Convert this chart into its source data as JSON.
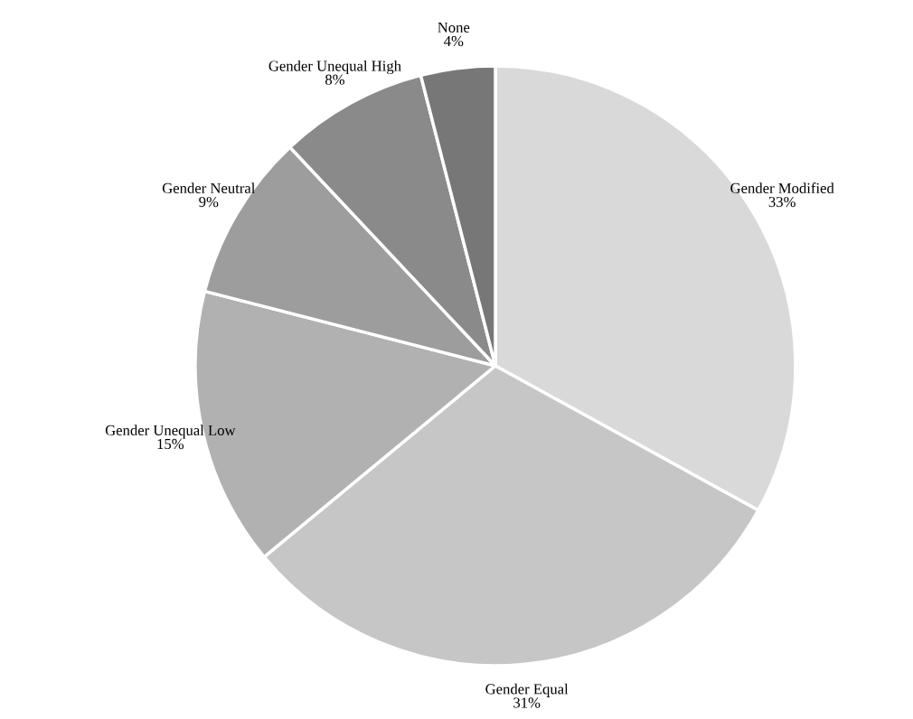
{
  "chart_data": {
    "type": "pie",
    "categories": [
      "Gender Modified",
      "Gender Equal",
      "Gender Unequal Low",
      "Gender Neutral",
      "Gender Unequal High",
      "None"
    ],
    "values": [
      33,
      31,
      15,
      9,
      8,
      4
    ],
    "value_labels": [
      "33%",
      "31%",
      "15%",
      "9%",
      "8%",
      "4%"
    ],
    "colors": [
      "#d9d9d9",
      "#c6c6c6",
      "#b1b1b1",
      "#9d9d9d",
      "#8a8a8a",
      "#777777"
    ]
  }
}
